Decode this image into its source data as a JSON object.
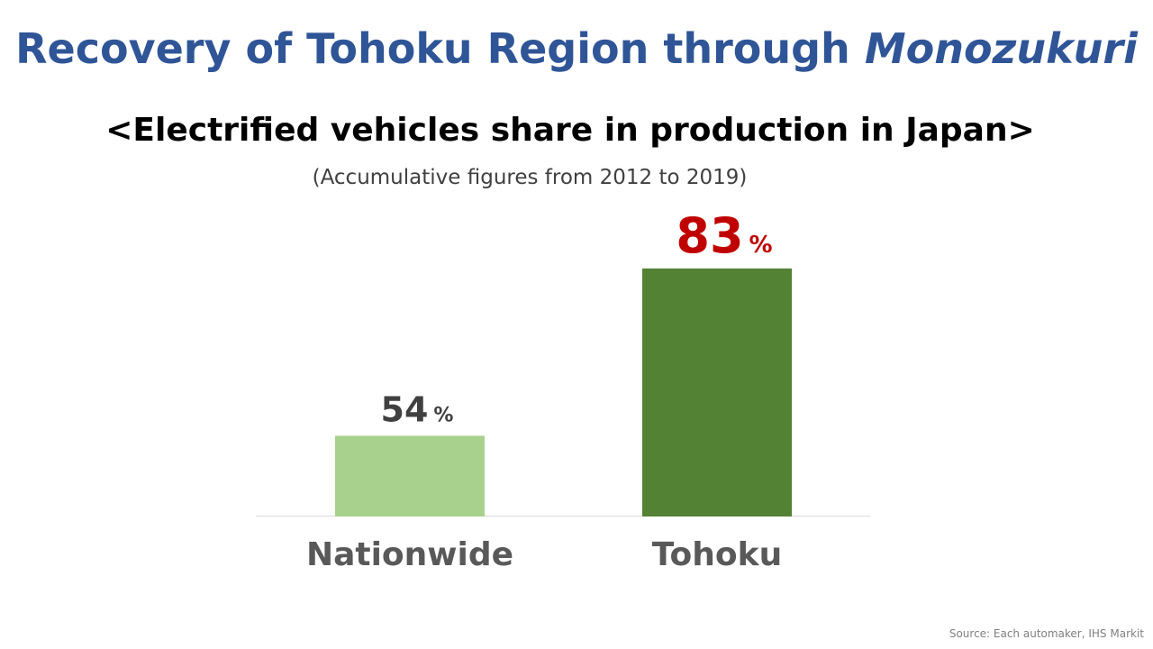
{
  "title": {
    "text": "Recovery of Tohoku Region through",
    "emphasis": "Monozukuri"
  },
  "chart_data": {
    "type": "bar",
    "title": "<Electrified vehicles share in production in Japan>",
    "subtitle": "(Accumulative figures from 2012 to 2019)",
    "categories": [
      "Nationwide",
      "Tohoku"
    ],
    "values": [
      54,
      83
    ],
    "value_unit": "%",
    "colors": [
      "#a9d18e",
      "#548235"
    ],
    "label_colors": [
      "#404040",
      "#c00000"
    ],
    "ylim": [
      40,
      95
    ]
  },
  "source": "Source: Each automaker, IHS Markit"
}
